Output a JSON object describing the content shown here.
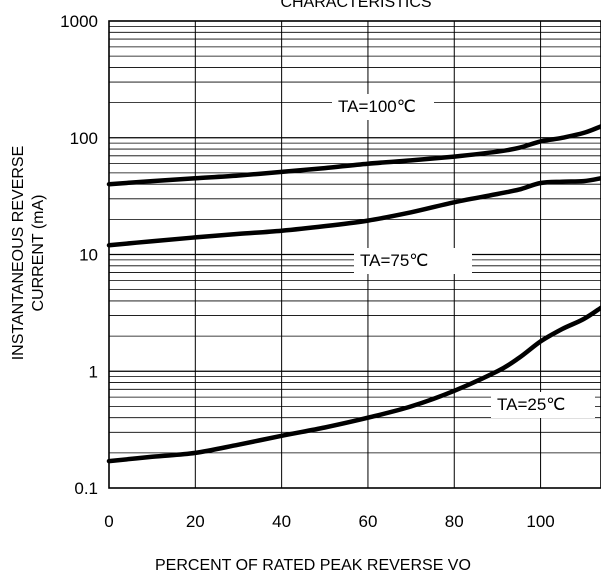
{
  "chart_data": {
    "type": "line",
    "title": "CHARACTERISTICS",
    "xlabel": "PERCENT OF RATED PEAK REVERSE VO",
    "ylabel_lines": [
      "INSTANTANEOUS REVERSE",
      "CURRENT (mA)"
    ],
    "x_ticks": [
      "0",
      "20",
      "40",
      "60",
      "80",
      "100"
    ],
    "y_ticks": [
      "0.1",
      "1",
      "10",
      "100",
      "1000"
    ],
    "xlim": [
      0,
      114
    ],
    "ylim": [
      0.1,
      1000
    ],
    "y_scale": "log",
    "grid": true,
    "series": [
      {
        "label": "TA=100℃",
        "x": [
          0,
          10,
          20,
          30,
          40,
          50,
          60,
          70,
          80,
          90,
          95,
          100,
          105,
          110,
          114
        ],
        "y": [
          40,
          42.5,
          45,
          47.5,
          51,
          55,
          60,
          64,
          69,
          76,
          82,
          93,
          100,
          110,
          125
        ]
      },
      {
        "label": "TA=75℃",
        "x": [
          0,
          10,
          20,
          30,
          40,
          50,
          60,
          70,
          80,
          90,
          95,
          100,
          105,
          110,
          114
        ],
        "y": [
          12,
          13,
          14,
          15,
          16,
          17.5,
          19.5,
          23,
          28,
          33,
          36,
          41,
          42,
          42.5,
          45
        ]
      },
      {
        "label": "TA=25℃",
        "x": [
          0,
          10,
          20,
          30,
          40,
          50,
          60,
          70,
          80,
          90,
          95,
          100,
          105,
          110,
          114
        ],
        "y": [
          0.17,
          0.185,
          0.2,
          0.235,
          0.28,
          0.33,
          0.4,
          0.5,
          0.68,
          1.0,
          1.3,
          1.8,
          2.3,
          2.8,
          3.5
        ]
      }
    ]
  }
}
